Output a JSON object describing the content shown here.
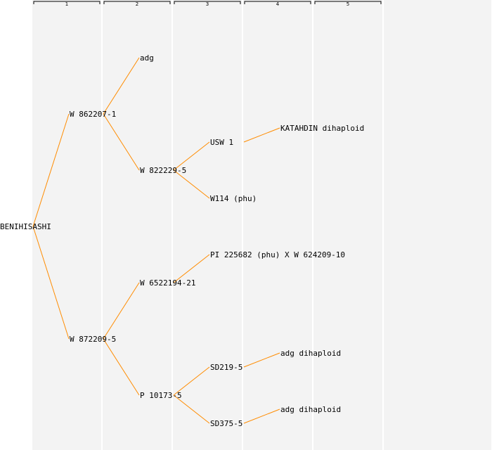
{
  "generations": [
    "1",
    "2",
    "3",
    "4",
    "5"
  ],
  "nodes": [
    {
      "id": "n1",
      "gen": 0,
      "row": 8,
      "label": "BENIHISASHI"
    },
    {
      "id": "n2",
      "gen": 1,
      "row": 4,
      "label": "W 862207-1"
    },
    {
      "id": "n3",
      "gen": 1,
      "row": 12,
      "label": "W 872209-5"
    },
    {
      "id": "n4",
      "gen": 2,
      "row": 2,
      "label": "adg"
    },
    {
      "id": "n5",
      "gen": 2,
      "row": 6,
      "label": "W 822229-5"
    },
    {
      "id": "n6",
      "gen": 2,
      "row": 10,
      "label": "W 6522194-21"
    },
    {
      "id": "n7",
      "gen": 2,
      "row": 14,
      "label": "P 10173-5"
    },
    {
      "id": "n8",
      "gen": 3,
      "row": 5,
      "label": "USW 1"
    },
    {
      "id": "n9",
      "gen": 3,
      "row": 7,
      "label": "W114 (phu)"
    },
    {
      "id": "n10",
      "gen": 3,
      "row": 9,
      "label": "PI 225682 (phu) X W 624209-10"
    },
    {
      "id": "n11",
      "gen": 3,
      "row": 13,
      "label": "SD219-5"
    },
    {
      "id": "n12",
      "gen": 3,
      "row": 15,
      "label": "SD375-5"
    },
    {
      "id": "n13",
      "gen": 4,
      "row": 4.5,
      "label": "KATAHDIN dihaploid"
    },
    {
      "id": "n14",
      "gen": 4,
      "row": 12.5,
      "label": "adg dihaploid"
    },
    {
      "id": "n15",
      "gen": 4,
      "row": 14.5,
      "label": "adg dihaploid"
    }
  ],
  "edges": [
    [
      "n1",
      "n2"
    ],
    [
      "n1",
      "n3"
    ],
    [
      "n2",
      "n4"
    ],
    [
      "n2",
      "n5"
    ],
    [
      "n3",
      "n6"
    ],
    [
      "n3",
      "n7"
    ],
    [
      "n5",
      "n8"
    ],
    [
      "n5",
      "n9"
    ],
    [
      "n6",
      "n10"
    ],
    [
      "n7",
      "n11"
    ],
    [
      "n7",
      "n12"
    ],
    [
      "n8",
      "n13"
    ],
    [
      "n11",
      "n14"
    ],
    [
      "n12",
      "n15"
    ]
  ],
  "colors": {
    "edge": "#ff8c00",
    "column_bg": "#f3f3f3",
    "text": "#000000"
  }
}
